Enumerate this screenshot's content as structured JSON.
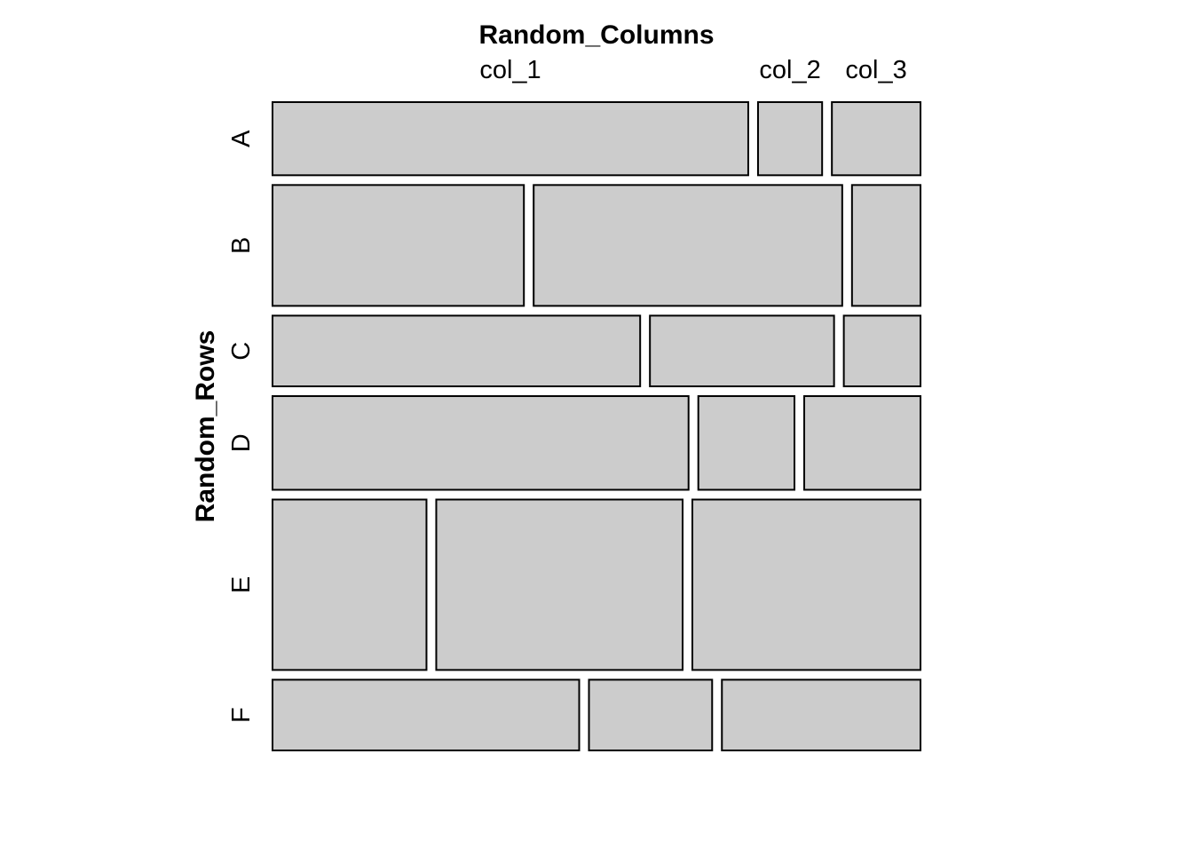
{
  "chart_data": {
    "type": "mosaic",
    "title": "",
    "xlabel": "Random_Columns",
    "ylabel": "Random_Rows",
    "columns": [
      "col_1",
      "col_2",
      "col_3"
    ],
    "rows": [
      "A",
      "B",
      "C",
      "D",
      "E",
      "F"
    ],
    "cells": [
      [
        0.757,
        0.102,
        0.141
      ],
      [
        0.4,
        0.491,
        0.109
      ],
      [
        0.585,
        0.293,
        0.122
      ],
      [
        0.662,
        0.153,
        0.185
      ],
      [
        0.245,
        0.392,
        0.363
      ],
      [
        0.488,
        0.196,
        0.316
      ]
    ],
    "row_proportions": [
      0.121,
      0.2,
      0.117,
      0.155,
      0.282,
      0.117
    ],
    "fill_color": "#cccccc",
    "border_color": "#000000",
    "grid": false,
    "legend": "none"
  }
}
